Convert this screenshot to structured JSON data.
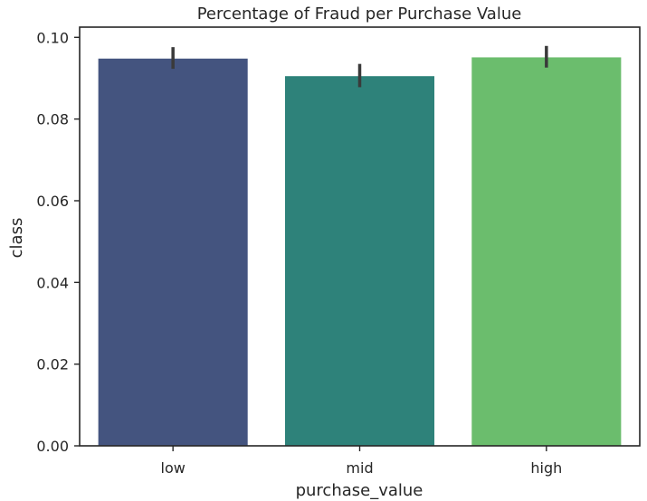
{
  "chart_data": {
    "type": "bar",
    "title": "Percentage of Fraud per Purchase Value",
    "xlabel": "purchase_value",
    "ylabel": "class",
    "categories": [
      "low",
      "mid",
      "high"
    ],
    "values": [
      0.0948,
      0.0905,
      0.0951
    ],
    "error_low": [
      0.0923,
      0.0878,
      0.0926
    ],
    "error_high": [
      0.0976,
      0.0935,
      0.0979
    ],
    "colors": [
      "#44547f",
      "#2e827a",
      "#6bbd6d"
    ],
    "ylim": [
      0,
      0.1025
    ],
    "yticks": [
      0.0,
      0.02,
      0.04,
      0.06,
      0.08,
      0.1
    ],
    "ytick_labels": [
      "0.00",
      "0.02",
      "0.04",
      "0.06",
      "0.08",
      "0.10"
    ],
    "grid": false,
    "legend": "none"
  }
}
